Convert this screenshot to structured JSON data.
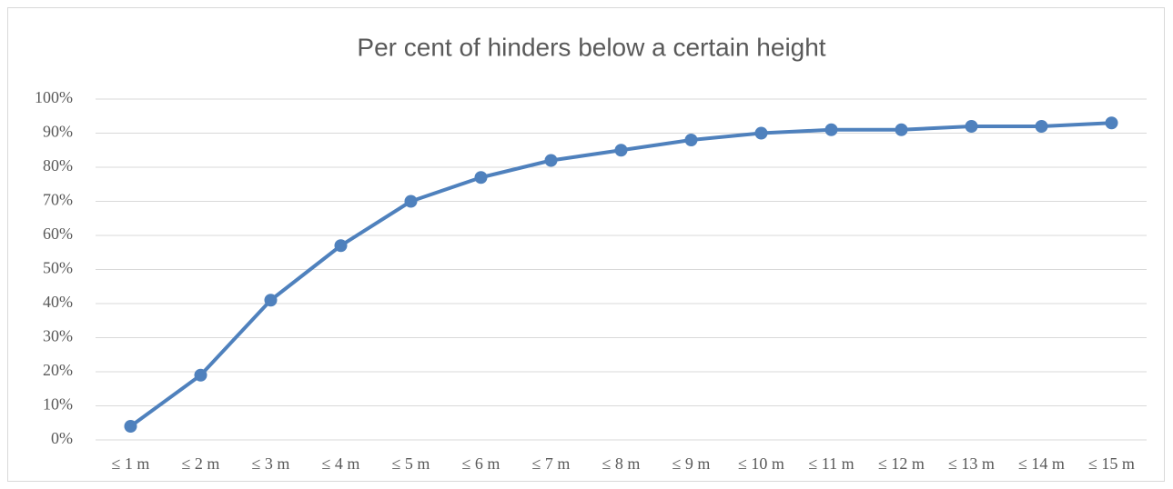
{
  "chart_data": {
    "type": "line",
    "title": "Per cent of hinders below a certain height",
    "categories": [
      "≤ 1 m",
      "≤ 2 m",
      "≤ 3 m",
      "≤ 4 m",
      "≤ 5 m",
      "≤ 6 m",
      "≤ 7 m",
      "≤ 8 m",
      "≤ 9 m",
      "≤ 10 m",
      "≤ 11 m",
      "≤ 12 m",
      "≤ 13 m",
      "≤ 14 m",
      "≤ 15 m"
    ],
    "values": [
      4,
      19,
      41,
      57,
      70,
      77,
      82,
      85,
      88,
      90,
      91,
      91,
      92,
      92,
      93
    ],
    "color": "#4f81bd",
    "ylim": [
      0,
      100
    ],
    "yticks": [
      {
        "value": 0,
        "label": "0%"
      },
      {
        "value": 10,
        "label": "10%"
      },
      {
        "value": 20,
        "label": "20%"
      },
      {
        "value": 30,
        "label": "30%"
      },
      {
        "value": 40,
        "label": "40%"
      },
      {
        "value": 50,
        "label": "50%"
      },
      {
        "value": 60,
        "label": "60%"
      },
      {
        "value": 70,
        "label": "70%"
      },
      {
        "value": 80,
        "label": "80%"
      },
      {
        "value": 90,
        "label": "90%"
      },
      {
        "value": 100,
        "label": "100%"
      }
    ],
    "grid": true
  }
}
